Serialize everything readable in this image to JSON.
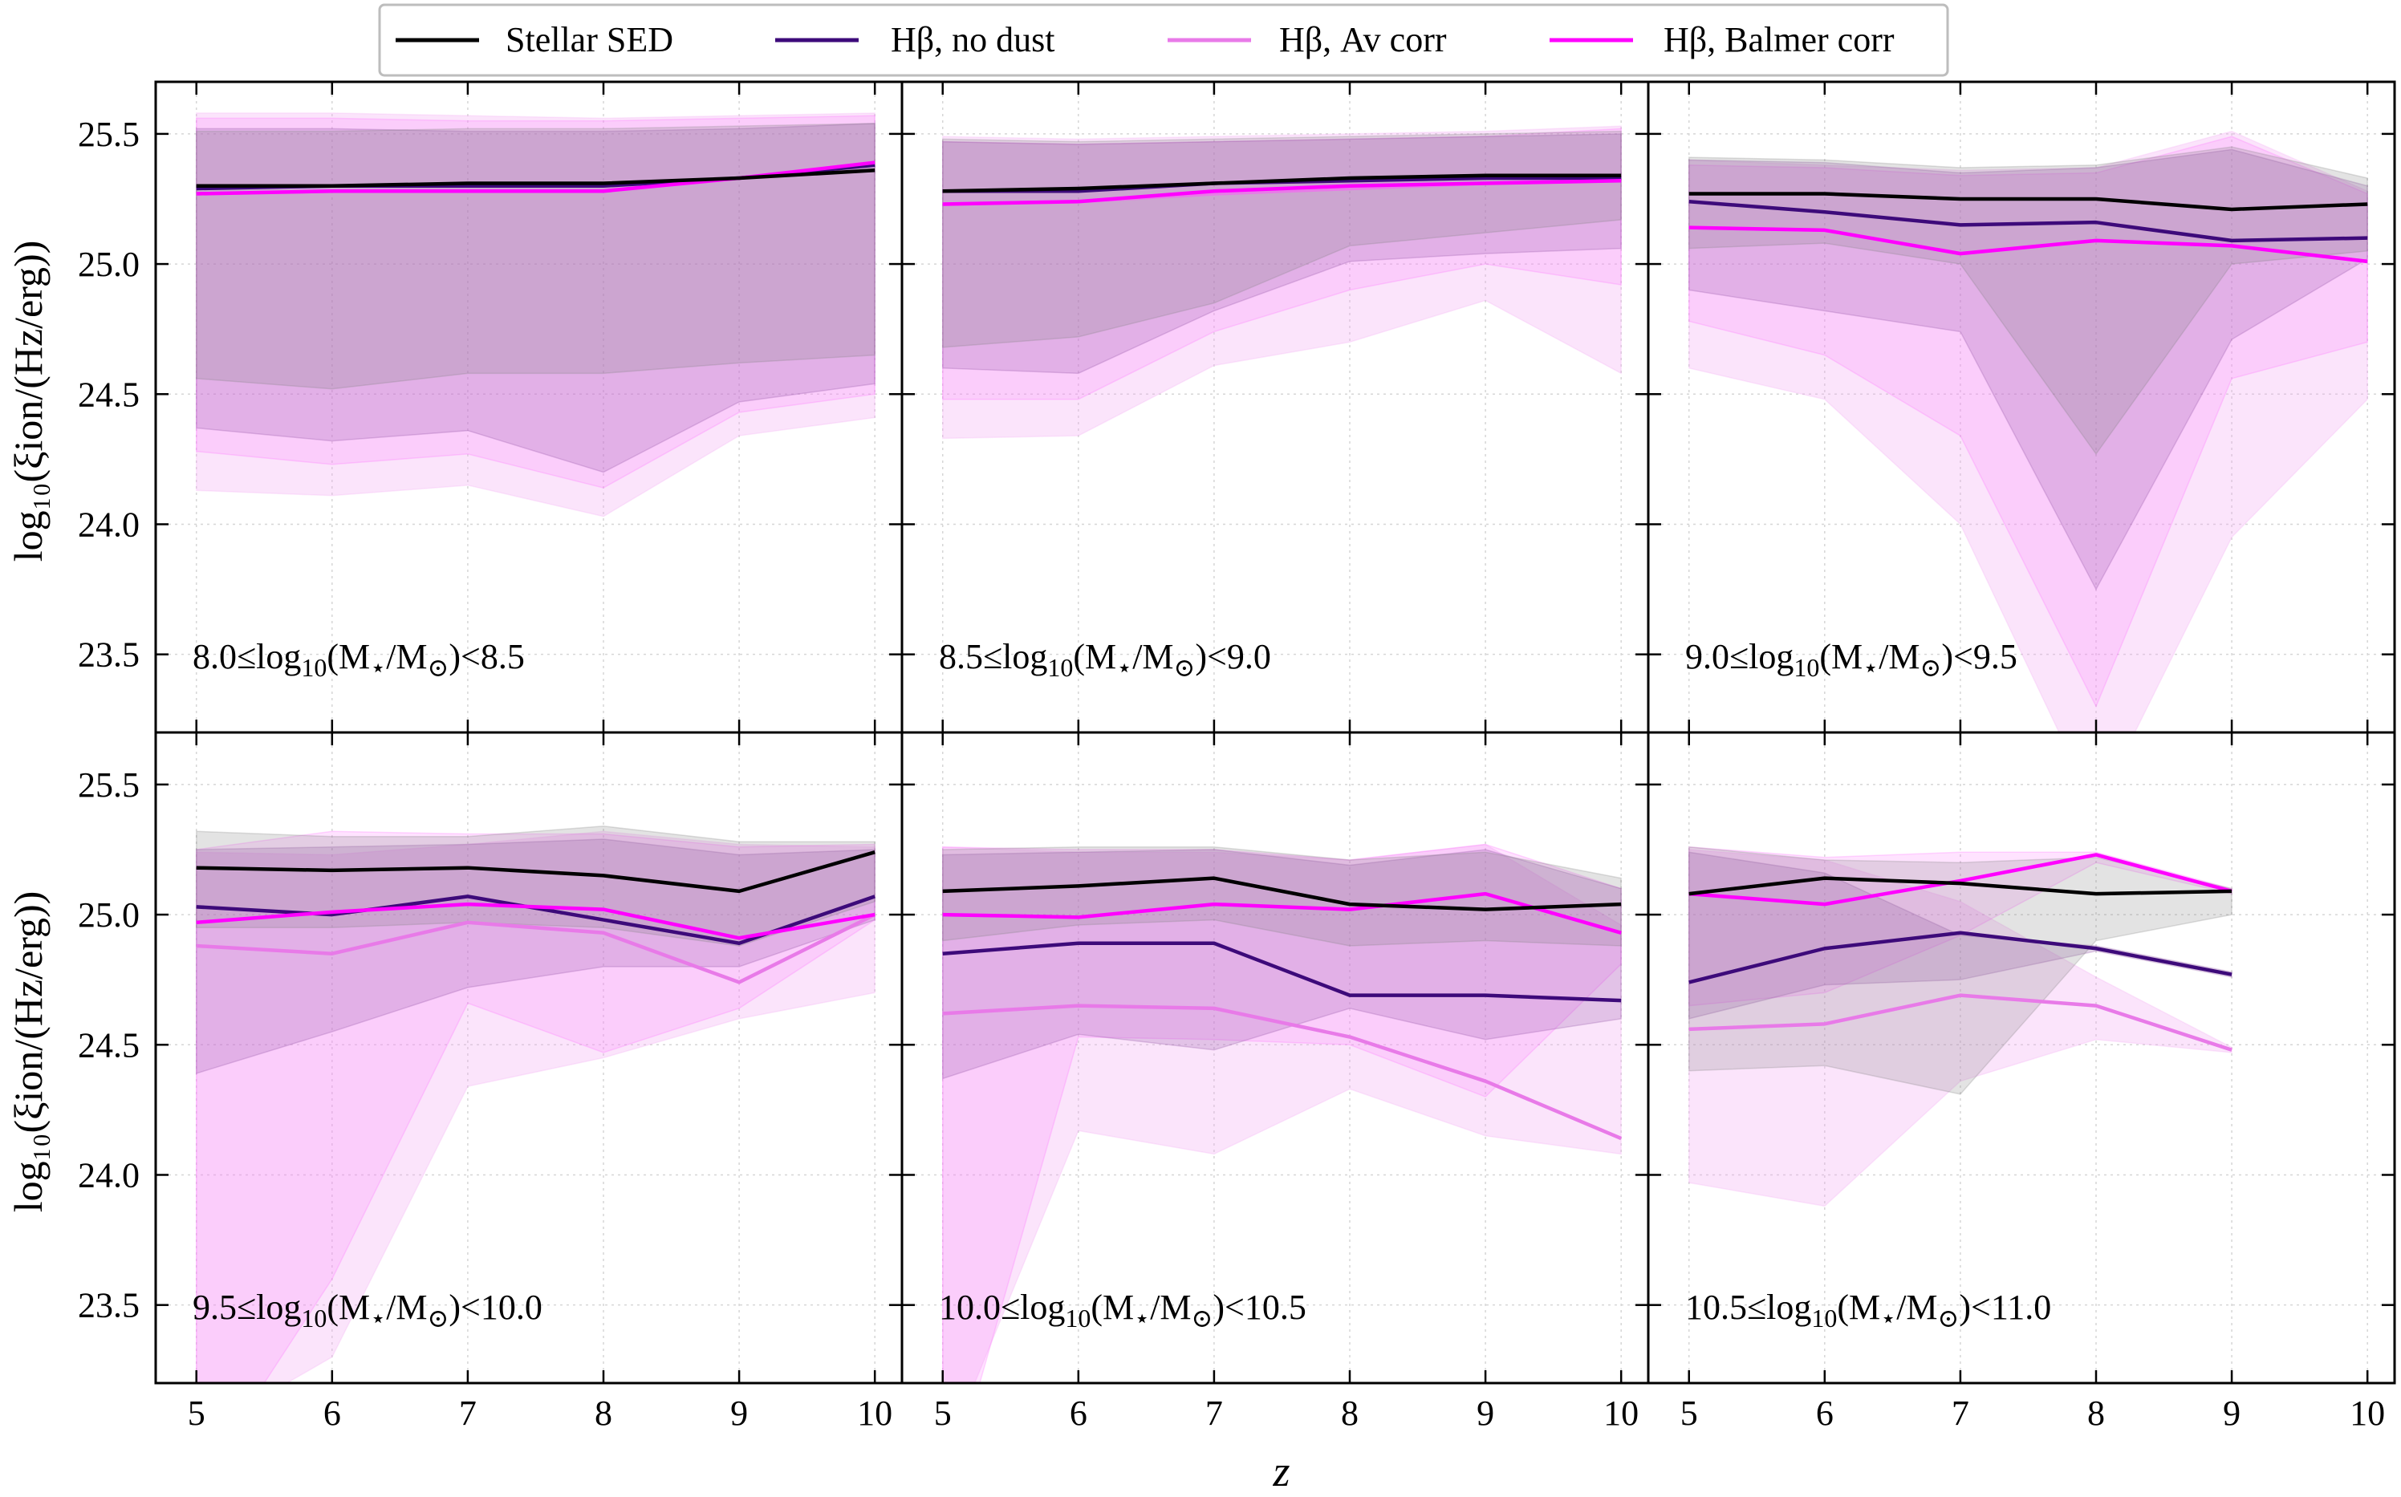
{
  "figure": {
    "xlabel": "z",
    "ylabel": "log₁₀(ξion/(Hz/erg))",
    "legend_position": "top-center, above panels",
    "grid": true
  },
  "legend": [
    {
      "label": "Stellar SED",
      "color": "#000000"
    },
    {
      "label": "Hβ, no dust",
      "color": "#3d0a7a"
    },
    {
      "label": "Hβ, Av corr",
      "color": "#e87ae8"
    },
    {
      "label": "Hβ, Balmer corr",
      "color": "#ff00ff"
    }
  ],
  "colors": {
    "stellar": "#000000",
    "nodust": "#3d0a7a",
    "avcorr": "#e87ae8",
    "balmer": "#ff00ff",
    "stellar_band": "#7f7f7f",
    "nodust_band": "#8a4aa0",
    "avcorr_band": "#f2a6f2",
    "balmer_band": "#ff66ff"
  },
  "chart_data": [
    {
      "type": "line",
      "panel_label": "8.0≤log₁₀(M⋆/M⊙)<8.5",
      "xlim": [
        4.7,
        10.2
      ],
      "ylim": [
        23.2,
        25.7
      ],
      "xticks": [
        5,
        6,
        7,
        8,
        9,
        10
      ],
      "yticks": [
        23.5,
        24.0,
        24.5,
        25.0,
        25.5
      ],
      "x": [
        5,
        6,
        7,
        8,
        9,
        10
      ],
      "series": [
        {
          "name": "Stellar SED",
          "values": [
            25.3,
            25.3,
            25.31,
            25.31,
            25.33,
            25.36
          ],
          "band_low": [
            24.56,
            24.52,
            24.58,
            24.58,
            24.62,
            24.65
          ],
          "band_high": [
            25.51,
            25.51,
            25.52,
            25.52,
            25.53,
            25.54
          ]
        },
        {
          "name": "Hβ, no dust",
          "values": [
            25.29,
            25.3,
            25.3,
            25.3,
            25.33,
            25.38
          ],
          "band_low": [
            24.37,
            24.32,
            24.36,
            24.2,
            24.47,
            24.54
          ],
          "band_high": [
            25.52,
            25.52,
            25.51,
            25.51,
            25.52,
            25.54
          ]
        },
        {
          "name": "Hβ, Av corr",
          "values": [
            25.27,
            25.28,
            25.28,
            25.28,
            25.33,
            25.39
          ],
          "band_low": [
            24.13,
            24.11,
            24.15,
            24.03,
            24.34,
            24.41
          ],
          "band_high": [
            25.58,
            25.58,
            25.57,
            25.56,
            25.57,
            25.58
          ]
        },
        {
          "name": "Hβ, Balmer corr",
          "values": [
            25.27,
            25.28,
            25.28,
            25.28,
            25.33,
            25.39
          ],
          "band_low": [
            24.28,
            24.23,
            24.27,
            24.14,
            24.43,
            24.5
          ],
          "band_high": [
            25.56,
            25.56,
            25.55,
            25.55,
            25.56,
            25.57
          ]
        }
      ]
    },
    {
      "type": "line",
      "panel_label": "8.5≤log₁₀(M⋆/M⊙)<9.0",
      "xlim": [
        4.7,
        10.2
      ],
      "ylim": [
        23.2,
        25.7
      ],
      "xticks": [
        5,
        6,
        7,
        8,
        9,
        10
      ],
      "yticks": [
        23.5,
        24.0,
        24.5,
        25.0,
        25.5
      ],
      "x": [
        5,
        6,
        7,
        8,
        9,
        10
      ],
      "series": [
        {
          "name": "Stellar SED",
          "values": [
            25.28,
            25.29,
            25.31,
            25.33,
            25.34,
            25.34
          ],
          "band_low": [
            24.68,
            24.72,
            24.85,
            25.07,
            25.12,
            25.17
          ],
          "band_high": [
            25.48,
            25.47,
            25.48,
            25.49,
            25.5,
            25.51
          ]
        },
        {
          "name": "Hβ, no dust",
          "values": [
            25.28,
            25.28,
            25.31,
            25.32,
            25.33,
            25.33
          ],
          "band_low": [
            24.6,
            24.58,
            24.82,
            25.01,
            25.04,
            25.06
          ],
          "band_high": [
            25.47,
            25.46,
            25.47,
            25.48,
            25.49,
            25.5
          ]
        },
        {
          "name": "Hβ, Av corr",
          "values": [
            25.23,
            25.24,
            25.27,
            25.29,
            25.31,
            25.33
          ],
          "band_low": [
            24.33,
            24.34,
            24.61,
            24.7,
            24.86,
            24.58
          ],
          "band_high": [
            25.49,
            25.48,
            25.49,
            25.5,
            25.51,
            25.53
          ]
        },
        {
          "name": "Hβ, Balmer corr",
          "values": [
            25.23,
            25.24,
            25.28,
            25.3,
            25.31,
            25.32
          ],
          "band_low": [
            24.48,
            24.48,
            24.74,
            24.9,
            25.0,
            24.92
          ],
          "band_high": [
            25.47,
            25.46,
            25.47,
            25.48,
            25.49,
            25.52
          ]
        }
      ]
    },
    {
      "type": "line",
      "panel_label": "9.0≤log₁₀(M⋆/M⊙)<9.5",
      "xlim": [
        4.7,
        10.2
      ],
      "ylim": [
        23.2,
        25.7
      ],
      "xticks": [
        5,
        6,
        7,
        8,
        9,
        10
      ],
      "yticks": [
        23.5,
        24.0,
        24.5,
        25.0,
        25.5
      ],
      "x": [
        5,
        6,
        7,
        8,
        9,
        10
      ],
      "series": [
        {
          "name": "Stellar SED",
          "values": [
            25.27,
            25.27,
            25.25,
            25.25,
            25.21,
            25.23
          ],
          "band_low": [
            25.06,
            25.08,
            25.0,
            24.27,
            25.0,
            25.05
          ],
          "band_high": [
            25.41,
            25.4,
            25.37,
            25.38,
            25.45,
            25.33
          ]
        },
        {
          "name": "Hβ, no dust",
          "values": [
            25.24,
            25.2,
            25.15,
            25.16,
            25.09,
            25.1
          ],
          "band_low": [
            24.9,
            24.82,
            24.74,
            23.75,
            24.71,
            25.02
          ],
          "band_high": [
            25.4,
            25.39,
            25.35,
            25.37,
            25.44,
            25.3
          ]
        },
        {
          "name": "Hβ, Av corr",
          "values": [
            25.14,
            25.13,
            25.04,
            25.09,
            25.07,
            25.01
          ],
          "band_low": [
            24.6,
            24.48,
            24.0,
            22.9,
            23.95,
            24.48
          ],
          "band_high": [
            25.4,
            25.38,
            25.36,
            25.37,
            25.51,
            25.28
          ]
        },
        {
          "name": "Hβ, Balmer corr",
          "values": [
            25.14,
            25.13,
            25.04,
            25.09,
            25.07,
            25.01
          ],
          "band_low": [
            24.78,
            24.65,
            24.34,
            23.3,
            24.56,
            24.7
          ],
          "band_high": [
            25.38,
            25.37,
            25.34,
            25.35,
            25.49,
            25.27
          ]
        }
      ]
    },
    {
      "type": "line",
      "panel_label": "9.5≤log₁₀(M⋆/M⊙)<10.0",
      "xlim": [
        4.7,
        10.2
      ],
      "ylim": [
        23.2,
        25.7
      ],
      "xticks": [
        5,
        6,
        7,
        8,
        9,
        10
      ],
      "yticks": [
        23.5,
        24.0,
        24.5,
        25.0,
        25.5
      ],
      "x": [
        5,
        6,
        7,
        8,
        9,
        10
      ],
      "series": [
        {
          "name": "Stellar SED",
          "values": [
            25.18,
            25.17,
            25.18,
            25.15,
            25.09,
            25.24
          ],
          "band_low": [
            24.95,
            24.95,
            24.97,
            24.95,
            24.88,
            25.05
          ],
          "band_high": [
            25.32,
            25.3,
            25.3,
            25.34,
            25.28,
            25.28
          ]
        },
        {
          "name": "Hβ, no dust",
          "values": [
            25.03,
            25.0,
            25.07,
            24.98,
            24.89,
            25.07
          ],
          "band_low": [
            24.39,
            24.55,
            24.72,
            24.8,
            24.8,
            24.98
          ],
          "band_high": [
            25.25,
            25.26,
            25.27,
            25.29,
            25.23,
            25.25
          ]
        },
        {
          "name": "Hβ, Av corr",
          "values": [
            24.88,
            24.85,
            24.97,
            24.93,
            24.74,
            25.0
          ],
          "band_low": [
            23.0,
            23.3,
            24.34,
            24.45,
            24.6,
            24.7
          ],
          "band_high": [
            25.24,
            25.23,
            25.27,
            25.32,
            25.27,
            25.26
          ]
        },
        {
          "name": "Hβ, Balmer corr",
          "values": [
            24.97,
            25.01,
            25.04,
            25.02,
            24.91,
            25.0
          ],
          "band_low": [
            22.8,
            23.6,
            24.66,
            24.47,
            24.64,
            24.98
          ],
          "band_high": [
            25.25,
            25.32,
            25.31,
            25.31,
            25.26,
            25.27
          ]
        }
      ]
    },
    {
      "type": "line",
      "panel_label": "10.0≤log₁₀(M⋆/M⊙)<10.5",
      "xlim": [
        4.7,
        10.2
      ],
      "ylim": [
        23.2,
        25.7
      ],
      "xticks": [
        5,
        6,
        7,
        8,
        9,
        10
      ],
      "yticks": [
        23.5,
        24.0,
        24.5,
        25.0,
        25.5
      ],
      "x": [
        5,
        6,
        7,
        8,
        9,
        10
      ],
      "series": [
        {
          "name": "Stellar SED",
          "values": [
            25.09,
            25.11,
            25.14,
            25.04,
            25.02,
            25.04
          ],
          "band_low": [
            24.9,
            24.96,
            24.98,
            24.88,
            24.9,
            24.88
          ],
          "band_high": [
            25.25,
            25.26,
            25.26,
            25.21,
            25.24,
            25.14
          ]
        },
        {
          "name": "Hβ, no dust",
          "values": [
            24.85,
            24.89,
            24.89,
            24.69,
            24.69,
            24.67
          ],
          "band_low": [
            24.37,
            24.54,
            24.48,
            24.64,
            24.52,
            24.6
          ],
          "band_high": [
            25.23,
            25.24,
            25.25,
            25.19,
            25.25,
            25.1
          ]
        },
        {
          "name": "Hβ, Av corr",
          "values": [
            24.62,
            24.65,
            24.64,
            24.53,
            24.36,
            24.14
          ],
          "band_low": [
            22.9,
            24.17,
            24.08,
            24.33,
            24.15,
            24.08
          ],
          "band_high": [
            25.26,
            25.24,
            25.24,
            25.21,
            25.27,
            24.96
          ]
        },
        {
          "name": "Hβ, Balmer corr",
          "values": [
            25.0,
            24.99,
            25.04,
            25.02,
            25.08,
            24.93
          ],
          "band_low": [
            22.7,
            24.53,
            24.52,
            24.5,
            24.3,
            24.81
          ],
          "band_high": [
            25.26,
            25.25,
            25.25,
            25.21,
            25.27,
            25.1
          ]
        }
      ]
    },
    {
      "type": "line",
      "panel_label": "10.5≤log₁₀(M⋆/M⊙)<11.0",
      "xlim": [
        4.7,
        10.2
      ],
      "ylim": [
        23.2,
        25.7
      ],
      "xticks": [
        5,
        6,
        7,
        8,
        9,
        10
      ],
      "yticks": [
        23.5,
        24.0,
        24.5,
        25.0,
        25.5
      ],
      "x": [
        5,
        6,
        7,
        8,
        9
      ],
      "series": [
        {
          "name": "Stellar SED",
          "values": [
            25.08,
            25.14,
            25.12,
            25.08,
            25.09
          ],
          "band_low": [
            24.4,
            24.42,
            24.31,
            24.9,
            25.0
          ],
          "band_high": [
            25.26,
            25.21,
            25.2,
            25.22,
            25.1
          ]
        },
        {
          "name": "Hβ, no dust",
          "values": [
            24.74,
            24.87,
            24.93,
            24.87,
            24.77
          ],
          "band_low": [
            24.6,
            24.73,
            24.75,
            24.86,
            24.76
          ],
          "band_high": [
            25.24,
            25.16,
            24.92,
            24.88,
            24.78
          ]
        },
        {
          "name": "Hβ, Av corr",
          "values": [
            24.56,
            24.58,
            24.69,
            24.65,
            24.48
          ],
          "band_low": [
            23.97,
            23.88,
            24.36,
            24.52,
            24.47
          ],
          "band_high": [
            25.25,
            25.21,
            25.05,
            24.76,
            24.49
          ]
        },
        {
          "name": "Hβ, Balmer corr",
          "values": [
            25.08,
            25.04,
            25.13,
            25.23,
            25.09
          ],
          "band_low": [
            24.65,
            24.7,
            24.92,
            25.2,
            25.08
          ],
          "band_high": [
            25.26,
            25.22,
            25.24,
            25.24,
            25.1
          ]
        }
      ]
    }
  ]
}
